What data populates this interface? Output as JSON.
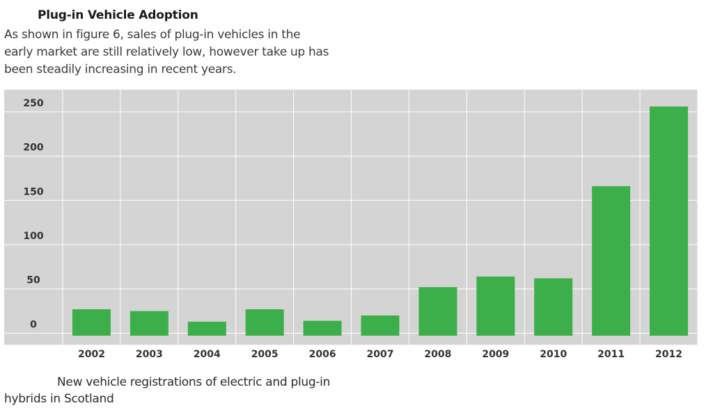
{
  "text": {
    "heading": "Plug-in Vehicle Adoption",
    "intro": "As shown in figure 6, sales of plug-in vehicles in the early market are still relatively low, however take up has been steadily increasing in recent years.",
    "caption": "New vehicle registrations of electric and plug-in hybrids in Scotland"
  },
  "colors": {
    "bar": "#3daf4a",
    "plot_background": "#d4d4d4",
    "gridline": "#ffffff"
  },
  "chart_data": {
    "type": "bar",
    "title": "",
    "xlabel": "",
    "ylabel": "",
    "categories": [
      "2002",
      "2003",
      "2004",
      "2005",
      "2006",
      "2007",
      "2008",
      "2009",
      "2010",
      "2011",
      "2012"
    ],
    "values": [
      27,
      25,
      13,
      27,
      14,
      20,
      52,
      64,
      62,
      166,
      256
    ],
    "ylim": [
      -13,
      275
    ],
    "yticks": [
      0,
      50,
      100,
      150,
      200,
      250
    ],
    "ytick_labels": [
      "0",
      "50",
      "100",
      "150",
      "200",
      "250"
    ],
    "grid": true,
    "legend": "none"
  }
}
